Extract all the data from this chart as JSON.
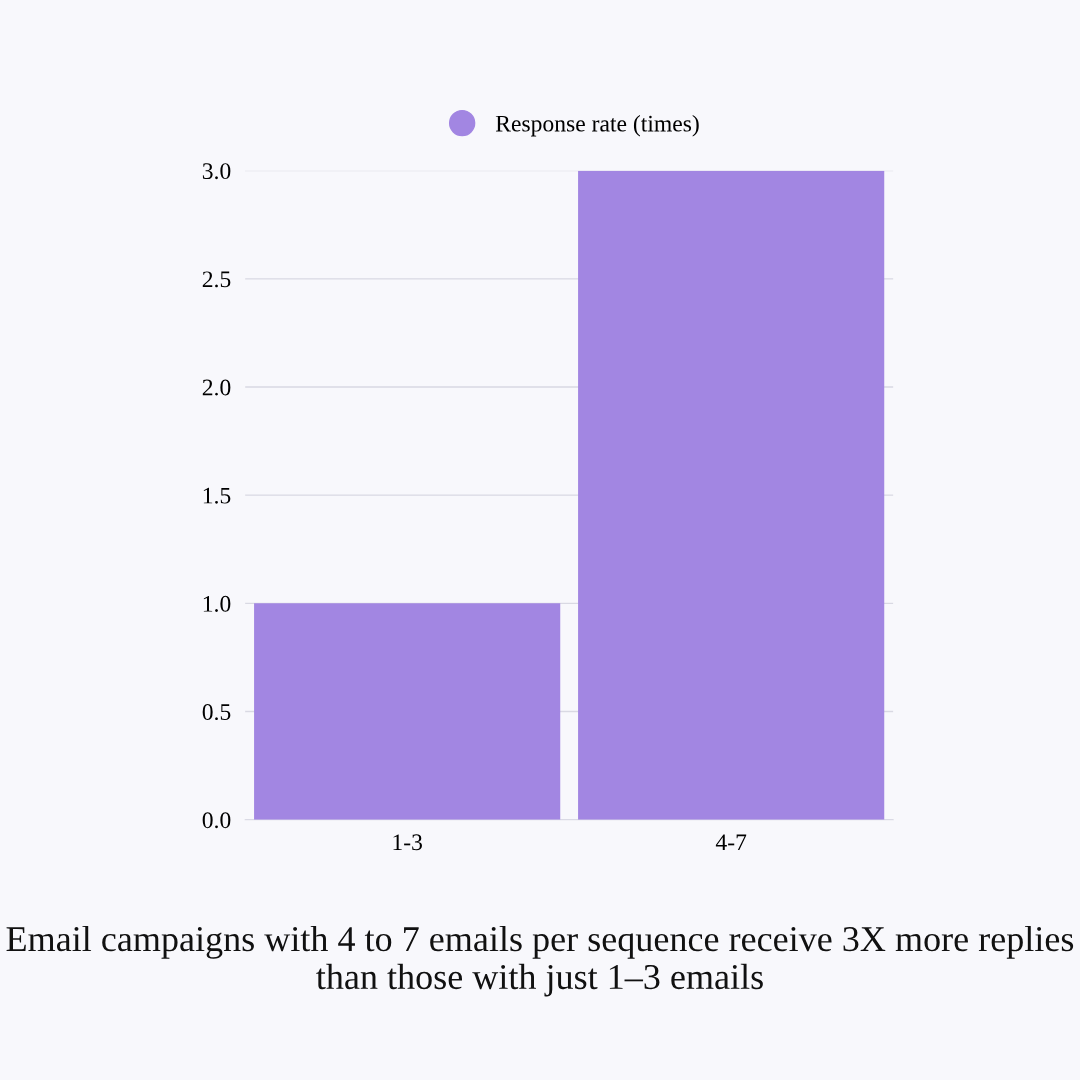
{
  "chart_data": {
    "type": "bar",
    "categories": [
      "1-3",
      "4-7"
    ],
    "series": [
      {
        "name": "Response rate (times)",
        "color": "#a286e2",
        "values": [
          1.0,
          3.0
        ]
      }
    ],
    "ylim": [
      0,
      3
    ],
    "yticks": [
      {
        "value": 0,
        "label": "0.0"
      },
      {
        "value": 0.5,
        "label": "0.5"
      },
      {
        "value": 1,
        "label": "1.0"
      },
      {
        "value": 1.5,
        "label": "1.5"
      },
      {
        "value": 2,
        "label": "2.0"
      },
      {
        "value": 2.5,
        "label": "2.5"
      },
      {
        "value": 3,
        "label": "3.0"
      }
    ],
    "grid": "y",
    "legend": "top",
    "marker": "circle",
    "annotations": [
      "Email campaigns with 4 to 7 emails per sequence receive 3X more replies than those with just 1–3 emails"
    ]
  }
}
